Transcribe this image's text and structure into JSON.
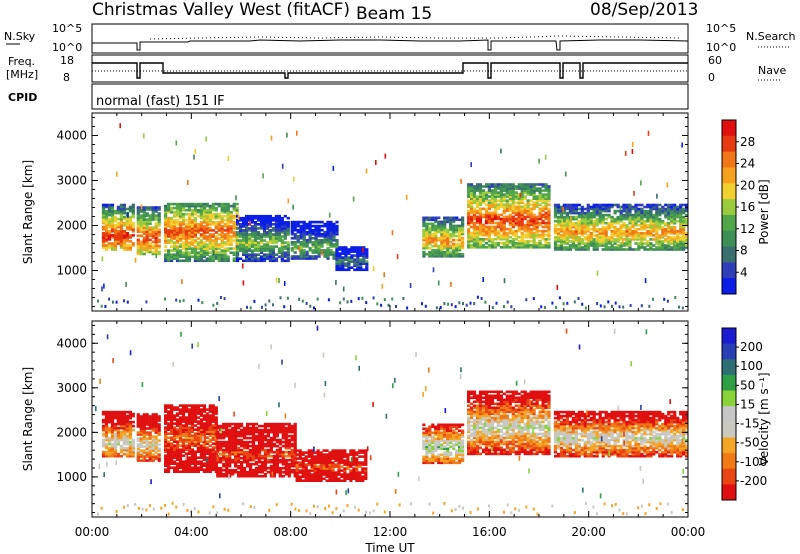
{
  "header": {
    "site": "Christmas Valley West (fitACF)",
    "beam": "Beam 15",
    "date": "08/Sep/2013"
  },
  "top_panels": {
    "nsky_label": "N.Sky",
    "nsky_ticks": [
      "10^5",
      "10^0"
    ],
    "nsky_right_ticks": [
      "10^5",
      "10^0"
    ],
    "nsearch_label": "N.Search",
    "freq_label": "Freq.",
    "freq_unit": "[MHz]",
    "freq_ticks": [
      "18",
      "8"
    ],
    "nave_ticks": [
      "60",
      "0"
    ],
    "nave_label": "Nave",
    "cpid_label": "CPID",
    "cpid_text": "normal (fast) 151 IF"
  },
  "colors": {
    "power_scale": [
      "#0a1ee6",
      "#2f3fb8",
      "#3a6f6f",
      "#3e8f55",
      "#52a64a",
      "#9acb3c",
      "#f1cf2e",
      "#f5a11e",
      "#f07618",
      "#e63c10",
      "#e11010"
    ],
    "velocity_scale": [
      "#e11010",
      "#ea4614",
      "#f07a16",
      "#f5a524",
      "#c9c9c0",
      "#c6c6c6",
      "#8ad23a",
      "#2fa046",
      "#2e6f73",
      "#283fb6",
      "#1b1bd2"
    ]
  },
  "chart_data": [
    {
      "type": "heatmap",
      "title": "Power",
      "ylabel": "Slant Range [km]",
      "xlabel": "Time UT",
      "x_ticks": [
        "00:00",
        "04:00",
        "08:00",
        "12:00",
        "16:00",
        "20:00",
        "00:00"
      ],
      "y_ticks": [
        "1000",
        "2000",
        "3000",
        "4000"
      ],
      "ylim": [
        100,
        4500
      ],
      "xlim_hours": [
        0,
        24
      ],
      "colorbar_label": "Power [dB]",
      "colorbar_ticks": [
        "28",
        "24",
        "20",
        "16",
        "12",
        "8",
        "4"
      ],
      "bands": [
        {
          "t0": 0.4,
          "t1": 1.7,
          "lo": 1450,
          "hi": 2450,
          "core": 1750,
          "level": 0.95
        },
        {
          "t0": 1.8,
          "t1": 2.7,
          "lo": 1350,
          "hi": 2400,
          "core": 1700,
          "level": 0.9
        },
        {
          "t0": 2.9,
          "t1": 5.8,
          "lo": 1200,
          "hi": 2500,
          "core": 1850,
          "level": 0.85
        },
        {
          "t0": 5.8,
          "t1": 7.9,
          "lo": 1200,
          "hi": 2200,
          "core": 1600,
          "level": 0.5
        },
        {
          "t0": 8.0,
          "t1": 9.8,
          "lo": 1250,
          "hi": 2100,
          "core": 1500,
          "level": 0.45
        },
        {
          "t0": 9.8,
          "t1": 11.0,
          "lo": 1000,
          "hi": 1500,
          "core": 1200,
          "level": 0.3
        },
        {
          "t0": 13.3,
          "t1": 14.9,
          "lo": 1300,
          "hi": 2200,
          "core": 1650,
          "level": 0.75
        },
        {
          "t0": 15.1,
          "t1": 18.4,
          "lo": 1500,
          "hi": 2900,
          "core": 2100,
          "level": 0.9
        },
        {
          "t0": 18.6,
          "t1": 24.0,
          "lo": 1450,
          "hi": 2450,
          "core": 1850,
          "level": 0.75
        }
      ]
    },
    {
      "type": "heatmap",
      "title": "Velocity",
      "ylabel": "Slant Range [km]",
      "xlabel": "Time UT",
      "x_ticks": [
        "00:00",
        "04:00",
        "08:00",
        "12:00",
        "16:00",
        "20:00",
        "00:00"
      ],
      "y_ticks": [
        "1000",
        "2000",
        "3000",
        "4000"
      ],
      "ylim": [
        100,
        4500
      ],
      "xlim_hours": [
        0,
        24
      ],
      "colorbar_label": "Velocity [m s⁻¹]",
      "colorbar_ticks": [
        "200",
        "100",
        "50",
        "15",
        "-15",
        "-50",
        "-100",
        "-200"
      ],
      "bands": [
        {
          "t0": 0.4,
          "t1": 1.7,
          "lo": 1450,
          "hi": 2450,
          "core": 1750,
          "level": 0.5
        },
        {
          "t0": 1.8,
          "t1": 2.7,
          "lo": 1350,
          "hi": 2400,
          "core": 1700,
          "level": 0.45
        },
        {
          "t0": 2.9,
          "t1": 5.0,
          "lo": 1100,
          "hi": 2600,
          "core": 1850,
          "level": 0.2
        },
        {
          "t0": 5.0,
          "t1": 8.2,
          "lo": 1000,
          "hi": 2200,
          "core": 1500,
          "level": 0.1
        },
        {
          "t0": 8.2,
          "t1": 11.0,
          "lo": 900,
          "hi": 1600,
          "core": 1200,
          "level": 0.15
        },
        {
          "t0": 13.3,
          "t1": 14.9,
          "lo": 1300,
          "hi": 2200,
          "core": 1650,
          "level": 0.6
        },
        {
          "t0": 15.1,
          "t1": 18.4,
          "lo": 1500,
          "hi": 2900,
          "core": 2100,
          "level": 0.5
        },
        {
          "t0": 18.6,
          "t1": 24.0,
          "lo": 1450,
          "hi": 2450,
          "core": 1850,
          "level": 0.5
        }
      ]
    }
  ]
}
